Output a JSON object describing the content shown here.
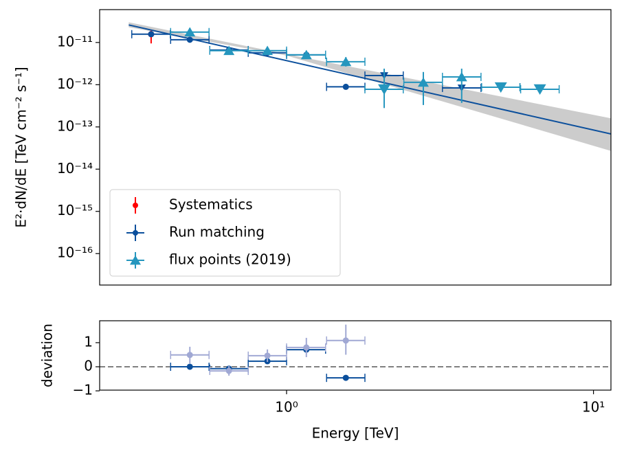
{
  "chart_data": [
    {
      "type": "errorbar",
      "ylabel": "E²·dN/dE [TeV cm⁻² s⁻¹]",
      "log_x": true,
      "log_y": true,
      "xlim": [
        0.246,
        11.4
      ],
      "ylim": [
        1.8e-17,
        6e-11
      ],
      "yticks": [
        {
          "value": 1e-16,
          "label": "10⁻¹⁶"
        },
        {
          "value": 1e-15,
          "label": "10⁻¹⁵"
        },
        {
          "value": 1e-14,
          "label": "10⁻¹⁴"
        },
        {
          "value": 1e-13,
          "label": "10⁻¹³"
        },
        {
          "value": 1e-12,
          "label": "10⁻¹²"
        },
        {
          "value": 1e-11,
          "label": "10⁻¹¹"
        }
      ],
      "legend": "lower left",
      "model": {
        "x": [
          0.306,
          11.4
        ],
        "values": [
          2.6e-11,
          6.8e-14
        ],
        "color": "#0b4f9c",
        "band_x": [
          0.306,
          1,
          11.4
        ],
        "band_low": [
          2.3e-11,
          4.9e-12,
          2.7e-14
        ],
        "band_high": [
          3e-11,
          5.3e-12,
          1.6e-13
        ],
        "band_color": "#cccccc"
      },
      "series": [
        {
          "name": "Systematics",
          "color": "#ff0000",
          "marker": "o",
          "x": [
            0.362
          ],
          "values": [
            1.57e-11
          ],
          "y_low": [
            9.5e-12
          ],
          "y_high": [
            1.9e-11
          ]
        },
        {
          "name": "Run matching",
          "color": "#0b4f9c",
          "marker": "o",
          "x": [
            0.362,
            0.484,
            0.649,
            0.866,
            1.16,
            1.56,
            2.08,
            3.72,
            4.99
          ],
          "values": [
            1.57e-11,
            1.16e-11,
            6.6e-12,
            5.7e-12,
            5.1e-12,
            8.9e-13,
            1.65e-12,
            8.4e-13,
            8.7e-13
          ],
          "x_low": [
            0.313,
            0.419,
            0.562,
            0.75,
            1.0,
            1.35,
            1.8,
            3.22,
            4.32
          ],
          "x_high": [
            0.418,
            0.559,
            0.75,
            1.0,
            1.34,
            1.8,
            2.4,
            4.3,
            5.76
          ],
          "upper_limit": [
            false,
            false,
            false,
            false,
            false,
            false,
            true,
            true,
            true
          ]
        },
        {
          "name": "flux points (2019)",
          "color": "#2596be",
          "marker": "^",
          "x": [
            0.484,
            0.649,
            0.866,
            1.16,
            1.56,
            2.08,
            2.79,
            3.72,
            4.99,
            6.69
          ],
          "values": [
            1.76e-11,
            6.4e-12,
            6.4e-12,
            5.1e-12,
            3.5e-12,
            7.8e-13,
            1.14e-12,
            1.53e-12,
            8.7e-13,
            7.8e-13
          ],
          "x_low": [
            0.419,
            0.562,
            0.75,
            1.0,
            1.35,
            1.8,
            2.41,
            3.22,
            4.32,
            5.79
          ],
          "x_high": [
            0.559,
            0.75,
            1.0,
            1.34,
            1.8,
            2.4,
            3.22,
            4.3,
            5.76,
            7.73
          ],
          "y_low": [
            1.4e-11,
            5.3e-12,
            5.3e-12,
            4.1e-12,
            2.7e-12,
            2.8e-13,
            3.3e-13,
            3.7e-13,
            null,
            null
          ],
          "y_high": [
            2.2e-11,
            7.7e-12,
            7.7e-12,
            6.4e-12,
            4.5e-12,
            2.4e-12,
            2e-12,
            2.4e-12,
            null,
            null
          ],
          "upper_limit": [
            false,
            false,
            false,
            false,
            false,
            true,
            false,
            false,
            true,
            true
          ]
        }
      ]
    },
    {
      "type": "errorbar",
      "ylabel": "deviation",
      "xlabel": "Energy [TeV]",
      "log_x": true,
      "log_y": false,
      "xlim": [
        0.246,
        11.4
      ],
      "ylim": [
        -0.97,
        1.91
      ],
      "xticks": [
        {
          "value": 1,
          "label": "10⁰"
        },
        {
          "value": 10,
          "label": "10¹"
        }
      ],
      "yticks": [
        {
          "value": -1,
          "label": "−1"
        },
        0,
        1
      ],
      "hline": 0,
      "hline_color": "#808080",
      "series": [
        {
          "color": "#0b4f9c",
          "marker": "o",
          "x": [
            0.484,
            0.649,
            0.866,
            1.16,
            1.56
          ],
          "values": [
            0,
            -0.08,
            0.23,
            0.71,
            -0.46
          ],
          "x_low": [
            0.419,
            0.562,
            0.75,
            1.0,
            1.35
          ],
          "x_high": [
            0.559,
            0.75,
            1.0,
            1.34,
            1.8
          ]
        },
        {
          "color": "#a0a8d4",
          "marker": "o",
          "x": [
            0.484,
            0.649,
            0.866,
            1.16,
            1.56
          ],
          "values": [
            0.49,
            -0.17,
            0.46,
            0.8,
            1.09
          ],
          "x_low": [
            0.419,
            0.562,
            0.75,
            1.0,
            1.35
          ],
          "x_high": [
            0.559,
            0.75,
            1.0,
            1.34,
            1.8
          ],
          "y_low": [
            0.14,
            -0.37,
            0.2,
            0.4,
            0.5
          ],
          "y_high": [
            0.83,
            0.03,
            0.72,
            1.2,
            1.75
          ]
        }
      ]
    }
  ]
}
